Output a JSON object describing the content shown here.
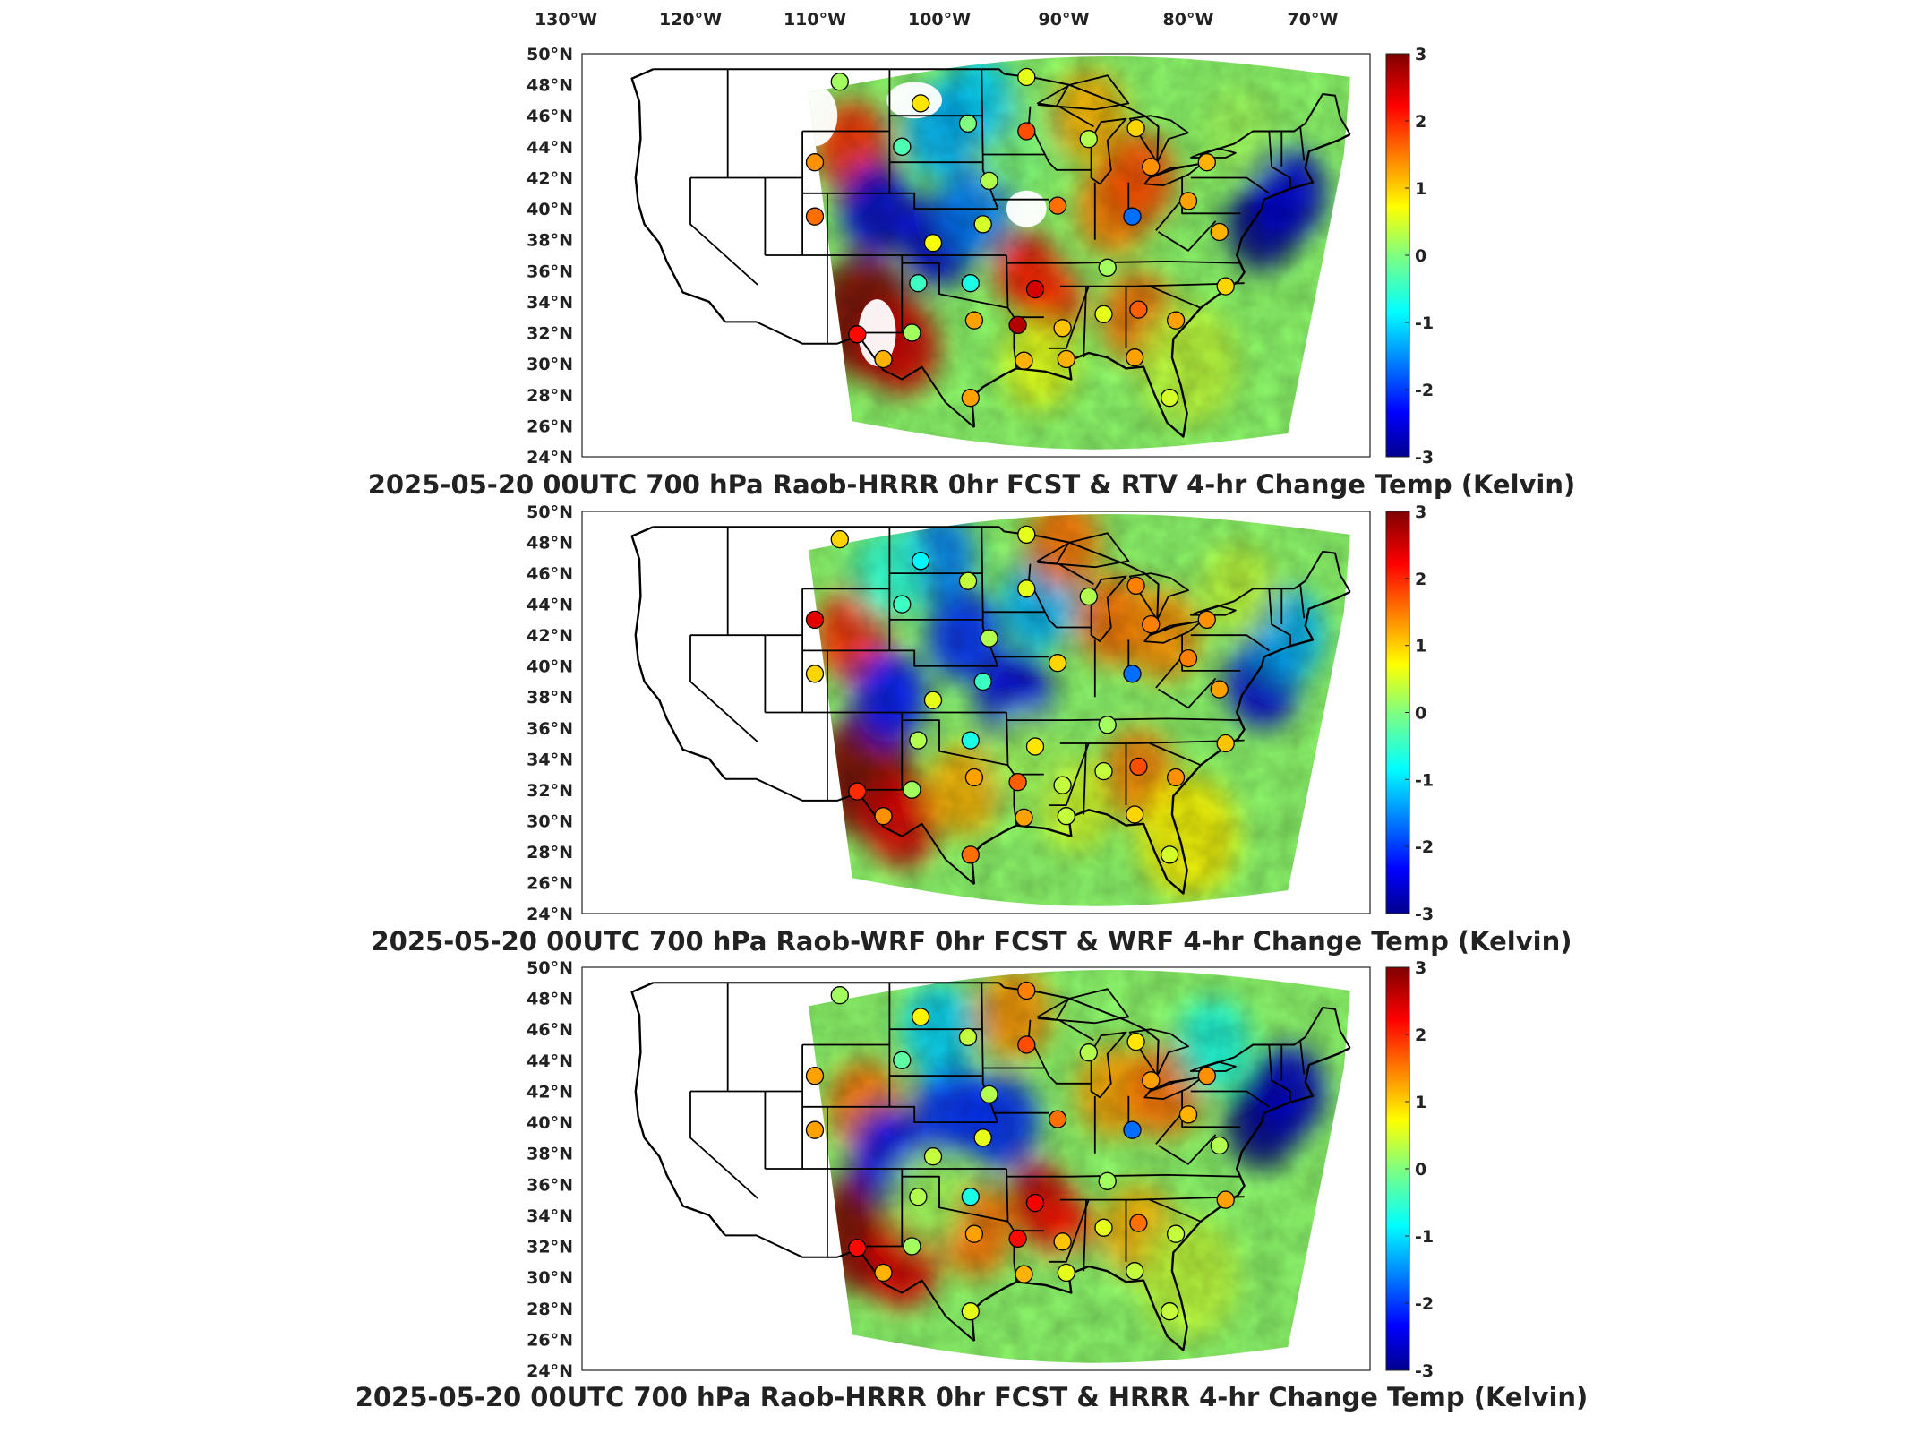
{
  "figure": {
    "top_lon_labels": [
      "130°W",
      "120°W",
      "110°W",
      "100°W",
      "90°W",
      "80°W",
      "70°W"
    ],
    "lat_labels": [
      "50°N",
      "48°N",
      "46°N",
      "44°N",
      "42°N",
      "40°N",
      "38°N",
      "36°N",
      "34°N",
      "32°N",
      "30°N",
      "28°N",
      "26°N",
      "24°N"
    ],
    "lat_values": [
      50,
      48,
      46,
      44,
      42,
      40,
      38,
      36,
      34,
      32,
      30,
      28,
      26,
      24
    ],
    "lon_values": [
      -130,
      -120,
      -110,
      -100,
      -90,
      -80,
      -70
    ],
    "colorbar": {
      "ticks": [
        "3",
        "2",
        "1",
        "0",
        "-1",
        "-2",
        "-3"
      ],
      "tick_values": [
        3,
        2,
        1,
        0,
        -1,
        -2,
        -3
      ],
      "range": [
        -3,
        3
      ],
      "colormap": "jet",
      "colors": [
        "#00008f",
        "#0000ff",
        "#0080ff",
        "#00ffff",
        "#80ff80",
        "#ffff00",
        "#ff8000",
        "#ff0000",
        "#800000"
      ]
    },
    "panels": [
      {
        "id": "rtv",
        "title": "2025-05-20 00UTC 700 hPa Raob-HRRR 0hr FCST & RTV 4-hr Change Temp (Kelvin)"
      },
      {
        "id": "wrf",
        "title": "2025-05-20 00UTC 700 hPa Raob-WRF 0hr FCST & WRF 4-hr Change Temp (Kelvin)"
      },
      {
        "id": "hrrr",
        "title": "2025-05-20 00UTC 700 hPa Raob-HRRR 0hr FCST & HRRR 4-hr Change Temp (Kelvin)"
      }
    ],
    "raob_stations": [
      {
        "lon": -108.0,
        "lat": 48.2,
        "values": [
          0.2,
          1.0,
          0.2
        ]
      },
      {
        "lon": -101.5,
        "lat": 46.8,
        "values": [
          0.9,
          -0.8,
          0.8
        ]
      },
      {
        "lon": -97.7,
        "lat": 45.5,
        "values": [
          0.0,
          0.4,
          0.4
        ]
      },
      {
        "lon": -93.0,
        "lat": 48.5,
        "values": [
          0.6,
          0.6,
          1.5
        ]
      },
      {
        "lon": -93.0,
        "lat": 45.0,
        "values": [
          1.8,
          0.6,
          1.8
        ]
      },
      {
        "lon": -88.0,
        "lat": 44.5,
        "values": [
          0.3,
          0.3,
          0.3
        ]
      },
      {
        "lon": -84.2,
        "lat": 45.2,
        "values": [
          1.0,
          1.5,
          0.9
        ]
      },
      {
        "lon": -83.0,
        "lat": 42.7,
        "values": [
          1.4,
          1.5,
          1.3
        ]
      },
      {
        "lon": -78.5,
        "lat": 43.0,
        "values": [
          1.2,
          1.4,
          1.4
        ]
      },
      {
        "lon": -110.0,
        "lat": 43.0,
        "values": [
          1.4,
          2.4,
          1.3
        ]
      },
      {
        "lon": -103.0,
        "lat": 44.0,
        "values": [
          -0.3,
          -0.4,
          -0.2
        ]
      },
      {
        "lon": -96.0,
        "lat": 41.8,
        "values": [
          0.3,
          0.3,
          0.3
        ]
      },
      {
        "lon": -90.5,
        "lat": 40.2,
        "values": [
          1.6,
          1.0,
          1.6
        ]
      },
      {
        "lon": -84.5,
        "lat": 39.5,
        "values": [
          -1.6,
          -1.6,
          -1.6
        ]
      },
      {
        "lon": -86.5,
        "lat": 36.2,
        "values": [
          0.2,
          0.2,
          0.2
        ]
      },
      {
        "lon": -80.0,
        "lat": 40.5,
        "values": [
          1.3,
          1.5,
          1.2
        ]
      },
      {
        "lon": -77.5,
        "lat": 38.5,
        "values": [
          1.2,
          1.3,
          0.3
        ]
      },
      {
        "lon": -77.0,
        "lat": 35.0,
        "values": [
          1.0,
          1.1,
          1.3
        ]
      },
      {
        "lon": -81.0,
        "lat": 32.8,
        "values": [
          1.3,
          1.4,
          0.4
        ]
      },
      {
        "lon": -84.0,
        "lat": 33.5,
        "values": [
          1.7,
          1.8,
          1.6
        ]
      },
      {
        "lon": -86.8,
        "lat": 33.2,
        "values": [
          0.6,
          0.4,
          0.6
        ]
      },
      {
        "lon": -90.1,
        "lat": 32.3,
        "values": [
          1.1,
          0.4,
          1.1
        ]
      },
      {
        "lon": -92.3,
        "lat": 34.8,
        "values": [
          2.5,
          0.9,
          2.3
        ]
      },
      {
        "lon": -93.7,
        "lat": 32.5,
        "values": [
          2.7,
          1.7,
          2.2
        ]
      },
      {
        "lon": -97.2,
        "lat": 32.8,
        "values": [
          1.3,
          1.3,
          1.3
        ]
      },
      {
        "lon": -97.5,
        "lat": 35.2,
        "values": [
          -0.6,
          -0.6,
          -0.6
        ]
      },
      {
        "lon": -101.7,
        "lat": 35.2,
        "values": [
          -0.4,
          0.3,
          0.3
        ]
      },
      {
        "lon": -102.2,
        "lat": 32.0,
        "values": [
          0.2,
          0.2,
          0.2
        ]
      },
      {
        "lon": -100.5,
        "lat": 37.8,
        "values": [
          0.7,
          0.6,
          0.4
        ]
      },
      {
        "lon": -96.5,
        "lat": 39.0,
        "values": [
          0.5,
          -0.4,
          0.6
        ]
      },
      {
        "lon": -110.0,
        "lat": 39.5,
        "values": [
          1.6,
          1.0,
          1.3
        ]
      },
      {
        "lon": -106.6,
        "lat": 31.9,
        "values": [
          2.2,
          2.0,
          2.2
        ]
      },
      {
        "lon": -104.5,
        "lat": 30.3,
        "values": [
          1.2,
          1.4,
          1.2
        ]
      },
      {
        "lon": -97.5,
        "lat": 27.8,
        "values": [
          1.3,
          1.6,
          0.6
        ]
      },
      {
        "lon": -93.2,
        "lat": 30.2,
        "values": [
          1.2,
          1.3,
          1.2
        ]
      },
      {
        "lon": -89.8,
        "lat": 30.3,
        "values": [
          1.2,
          0.4,
          0.6
        ]
      },
      {
        "lon": -84.3,
        "lat": 30.4,
        "values": [
          1.3,
          1.0,
          0.4
        ]
      },
      {
        "lon": -81.5,
        "lat": 27.8,
        "values": [
          0.5,
          0.5,
          0.4
        ]
      }
    ]
  }
}
